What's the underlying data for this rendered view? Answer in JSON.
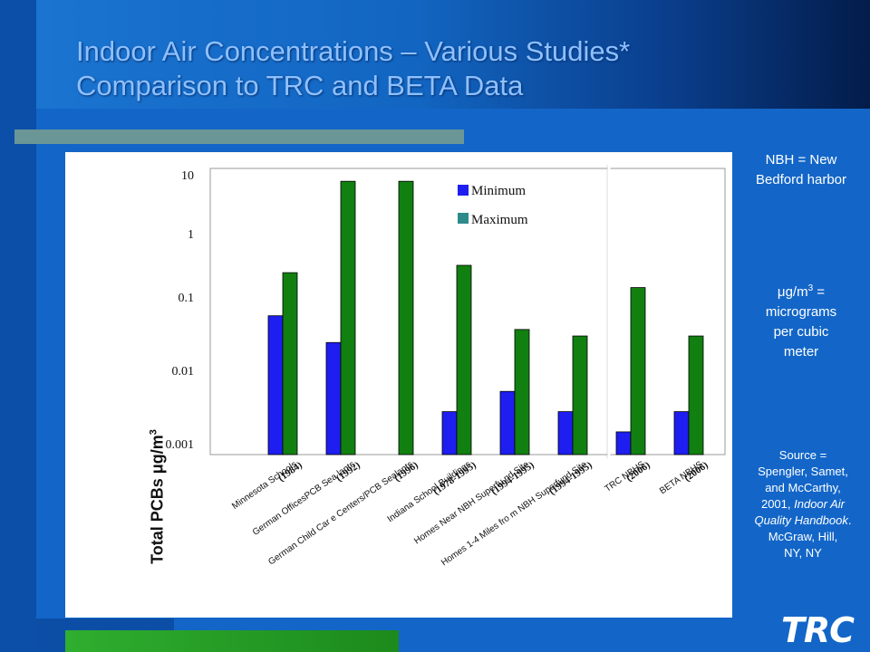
{
  "slide": {
    "title_line1": "Indoor Air Concentrations – Various Studies*",
    "title_line2": "Comparison to TRC and BETA Data"
  },
  "notes": {
    "nbh_line1": "NBH = New",
    "nbh_line2": "Bedford harbor",
    "unit_symbol": "μg/m",
    "unit_sup": "3",
    "unit_rest1": " =",
    "unit_line2": "micrograms",
    "unit_line3": "per cubic",
    "unit_line4": "meter",
    "source_line1": "Source =",
    "source_line2": "Spengler, Samet,",
    "source_line3": "and McCarthy,",
    "source_line4_plain": "2001, ",
    "source_line4_italic": "Indoor Air",
    "source_line5_italic": "Quality Handbook",
    "source_line5_plain": ".",
    "source_line6": "McGraw, Hill,",
    "source_line7": "NY, NY"
  },
  "logo": {
    "text": "TRC"
  },
  "chart_data": {
    "type": "bar",
    "yscale": "log",
    "ylim": [
      0.0005,
      10
    ],
    "ylabel_text": "Total PCBs ",
    "ylabel_unit": "μg/m",
    "ylabel_sup": "3",
    "yticks": [
      "10",
      "1",
      "0.1",
      "0.01",
      "0.001"
    ],
    "ytick_values": [
      10,
      1,
      0.1,
      0.01,
      0.001
    ],
    "legend": [
      "Minimum",
      "Maximum"
    ],
    "legend_position": "top-right",
    "colors": {
      "Minimum": "#1e1ef0",
      "Maximum": "#118011"
    },
    "categories": [
      {
        "name": "Minnesota Schools",
        "year": "(1984)"
      },
      {
        "name": "German OfficesPCB Sea lants",
        "year": "(1992)"
      },
      {
        "name": "German Child Car e Centers/PCB Sealants",
        "year": "(1996)"
      },
      {
        "name": "Indiana School Buildings",
        "year": "(1978-1995)"
      },
      {
        "name": "Homes Near NBH Superfu nd Site",
        "year": "(1994-1995)"
      },
      {
        "name": "Homes 1-4 Miles fro m NBH Superfund Site",
        "year": "(1994-1995)"
      },
      {
        "name": "TRC NBHS",
        "year": "(2006)"
      },
      {
        "name": "BETA NBHS",
        "year": "(2006)"
      }
    ],
    "series": [
      {
        "name": "Minimum",
        "values": [
          0.08,
          0.032,
          null,
          0.003,
          0.006,
          0.003,
          0.0015,
          0.003
        ]
      },
      {
        "name": "Maximum",
        "values": [
          0.35,
          8,
          8,
          0.45,
          0.05,
          0.04,
          0.21,
          0.04
        ]
      }
    ],
    "grid": false
  }
}
